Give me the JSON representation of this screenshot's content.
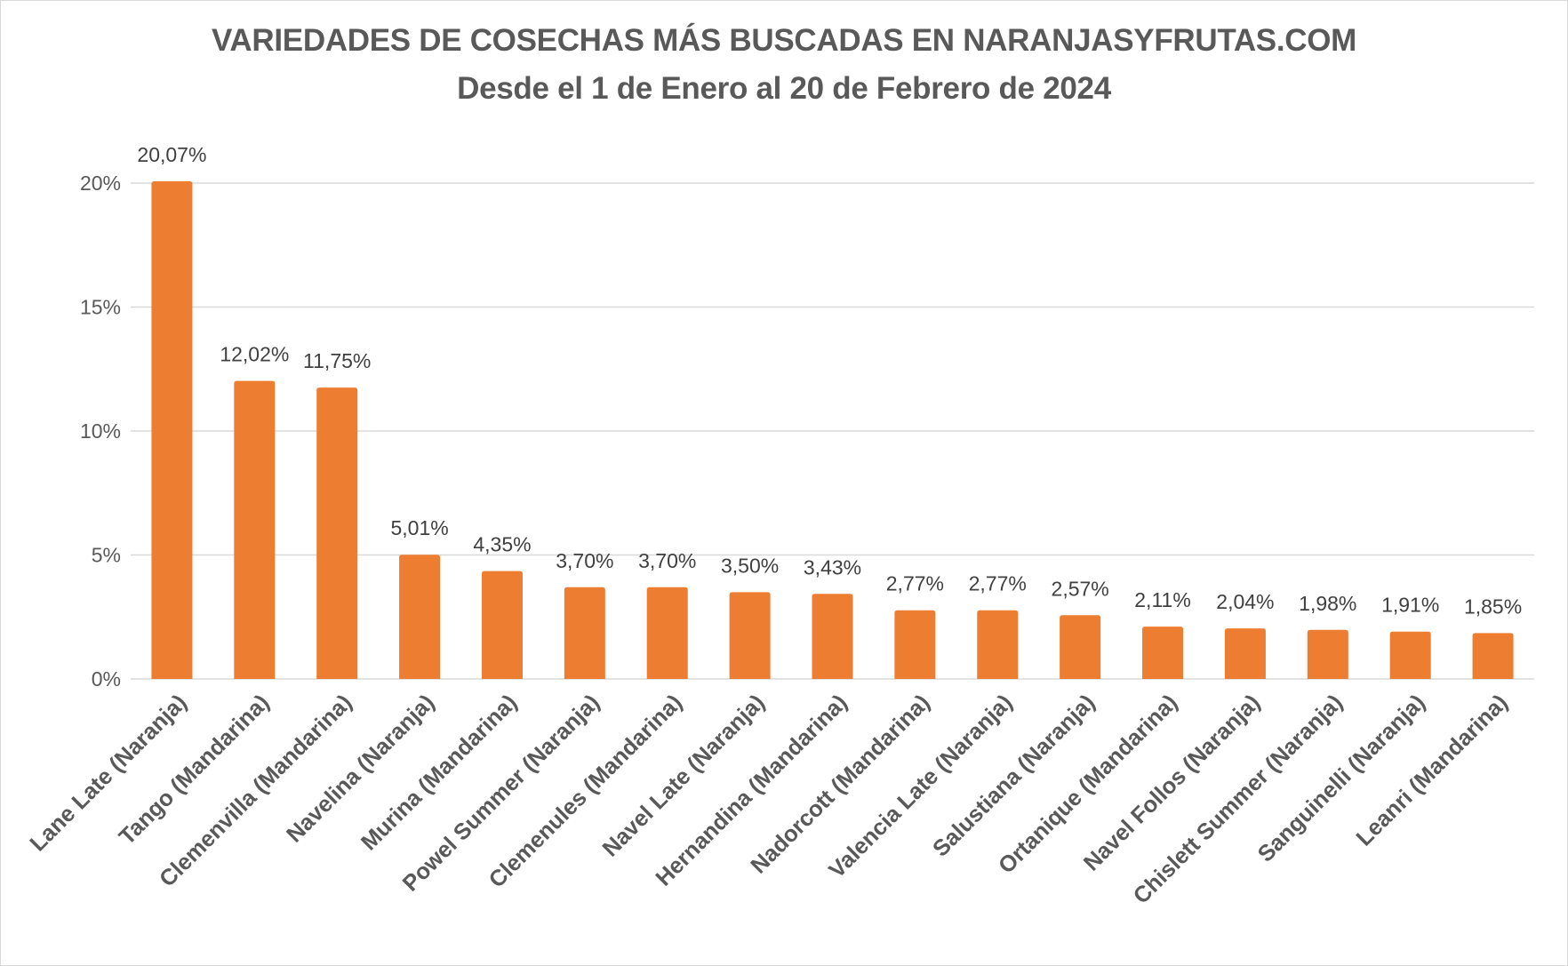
{
  "chart_data": {
    "type": "bar",
    "title": "VARIEDADES DE COSECHAS MÁS BUSCADAS EN NARANJASYFRUTAS.COM",
    "subtitle": "Desde el 1 de Enero al 20 de Febrero de 2024",
    "xlabel": "",
    "ylabel": "",
    "categories": [
      "Lane Late (Naranja)",
      "Tango (Mandarina)",
      "Clemenvilla (Mandarina)",
      "Navelina (Naranja)",
      "Murina (Mandarina)",
      "Powel Summer (Naranja)",
      "Clemenules (Mandarina)",
      "Navel Late (Naranja)",
      "Hernandina (Mandarina)",
      "Nadorcott (Mandarina)",
      "Valencia Late (Naranja)",
      "Salustiana (Naranja)",
      "Ortanique (Mandarina)",
      "Navel Follos (Naranja)",
      "Chislett Summer (Naranja)",
      "Sanguinelli (Naranja)",
      "Leanri (Mandarina)"
    ],
    "values": [
      20.07,
      12.02,
      11.75,
      5.01,
      4.35,
      3.7,
      3.7,
      3.5,
      3.43,
      2.77,
      2.77,
      2.57,
      2.11,
      2.04,
      1.98,
      1.91,
      1.85
    ],
    "data_labels": [
      "20,07%",
      "12,02%",
      "11,75%",
      "5,01%",
      "4,35%",
      "3,70%",
      "3,70%",
      "3,50%",
      "3,43%",
      "2,77%",
      "2,77%",
      "2,57%",
      "2,11%",
      "2,04%",
      "1,98%",
      "1,91%",
      "1,85%"
    ],
    "ylim": [
      0,
      20
    ],
    "yticks": [
      0,
      5,
      10,
      15,
      20
    ],
    "ytick_labels": [
      "0%",
      "5%",
      "10%",
      "15%",
      "20%"
    ],
    "grid": true,
    "legend": "none",
    "colors": {
      "bar": "#ED7D31",
      "grid": "#D9D9D9",
      "text": "#595959"
    }
  }
}
